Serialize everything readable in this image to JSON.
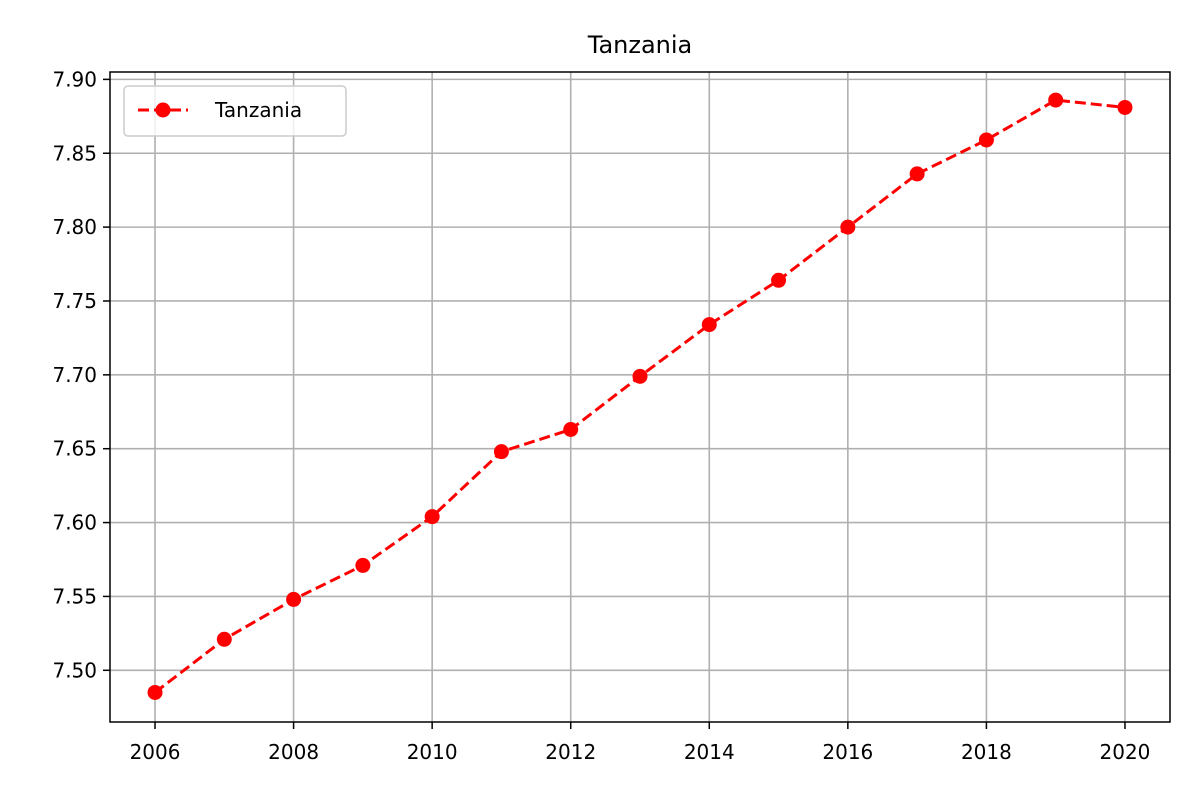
{
  "chart_data": {
    "type": "line",
    "title": "Tanzania",
    "xlabel": "",
    "ylabel": "",
    "x": [
      2006,
      2007,
      2008,
      2009,
      2010,
      2011,
      2012,
      2013,
      2014,
      2015,
      2016,
      2017,
      2018,
      2019,
      2020
    ],
    "series": [
      {
        "name": "Tanzania",
        "values": [
          7.485,
          7.521,
          7.548,
          7.571,
          7.604,
          7.648,
          7.663,
          7.699,
          7.734,
          7.764,
          7.8,
          7.836,
          7.859,
          7.886,
          7.881
        ],
        "color": "#ff0000",
        "line_style": "dashed",
        "marker": "circle"
      }
    ],
    "xlim": [
      2005.35,
      2020.65
    ],
    "ylim": [
      7.465,
      7.905
    ],
    "x_ticks": [
      2006,
      2008,
      2010,
      2012,
      2014,
      2016,
      2018,
      2020
    ],
    "x_tick_labels": [
      "2006",
      "2008",
      "2010",
      "2012",
      "2014",
      "2016",
      "2018",
      "2020"
    ],
    "y_ticks": [
      7.5,
      7.55,
      7.6,
      7.65,
      7.7,
      7.75,
      7.8,
      7.85,
      7.9
    ],
    "y_tick_labels": [
      "7.50",
      "7.55",
      "7.60",
      "7.65",
      "7.70",
      "7.75",
      "7.80",
      "7.85",
      "7.90"
    ],
    "grid": true,
    "legend_position": "top-left"
  }
}
